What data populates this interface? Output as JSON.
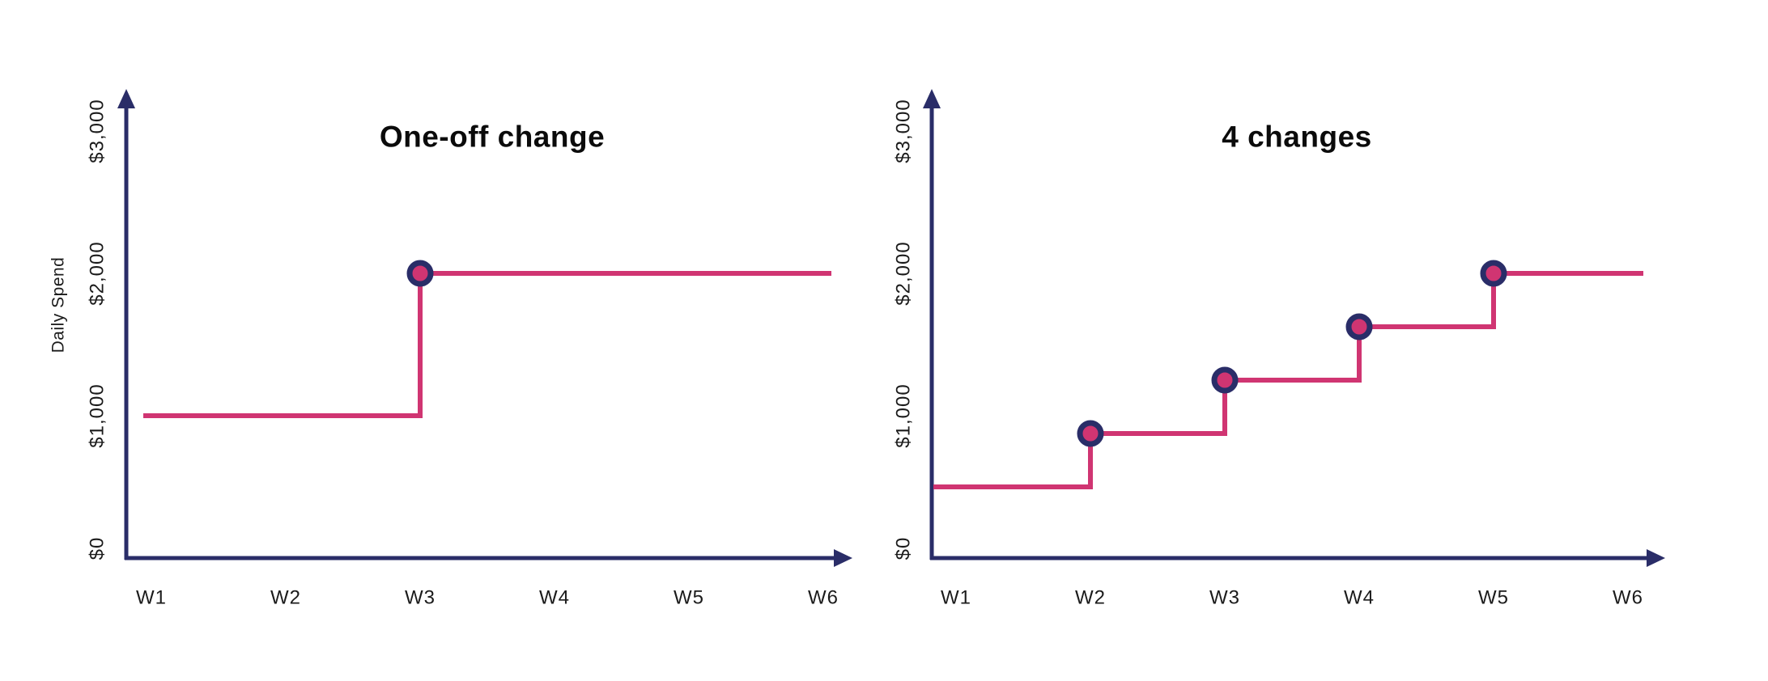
{
  "page": {
    "background": "#ffffff"
  },
  "colors": {
    "axis_navy": "#2a2d68",
    "line_pink": "#d03572",
    "marker_fill": "#d03572",
    "marker_ring": "#2a2d68",
    "title_color": "#0b0b0b",
    "label_color": "#1b1b1b"
  },
  "chart_data": [
    {
      "type": "line",
      "subtype": "step",
      "title": "One-off change",
      "ylabel": "Daily Spend",
      "xlabel": "",
      "categories": [
        "W1",
        "W2",
        "W3",
        "W4",
        "W5",
        "W6"
      ],
      "values": [
        1000,
        1000,
        2000,
        2000,
        2000,
        2000
      ],
      "change_points": [
        "W3"
      ],
      "y_ticks": [
        {
          "label": "$0",
          "value": 0
        },
        {
          "label": "$1,000",
          "value": 1000
        },
        {
          "label": "$2,000",
          "value": 2000
        },
        {
          "label": "$3,000",
          "value": 3000
        }
      ],
      "ylim": [
        0,
        3000
      ],
      "grid": false,
      "legend": false
    },
    {
      "type": "line",
      "subtype": "step",
      "title": "4 changes",
      "ylabel": "",
      "xlabel": "",
      "categories": [
        "W1",
        "W2",
        "W3",
        "W4",
        "W5",
        "W6"
      ],
      "values": [
        500,
        875,
        1250,
        1625,
        2000,
        2000
      ],
      "change_points": [
        "W2",
        "W3",
        "W4",
        "W5"
      ],
      "y_ticks": [
        {
          "label": "$0",
          "value": 0
        },
        {
          "label": "$1,000",
          "value": 1000
        },
        {
          "label": "$2,000",
          "value": 2000
        },
        {
          "label": "$3,000",
          "value": 3000
        }
      ],
      "ylim": [
        0,
        3000
      ],
      "grid": false,
      "legend": false
    }
  ]
}
